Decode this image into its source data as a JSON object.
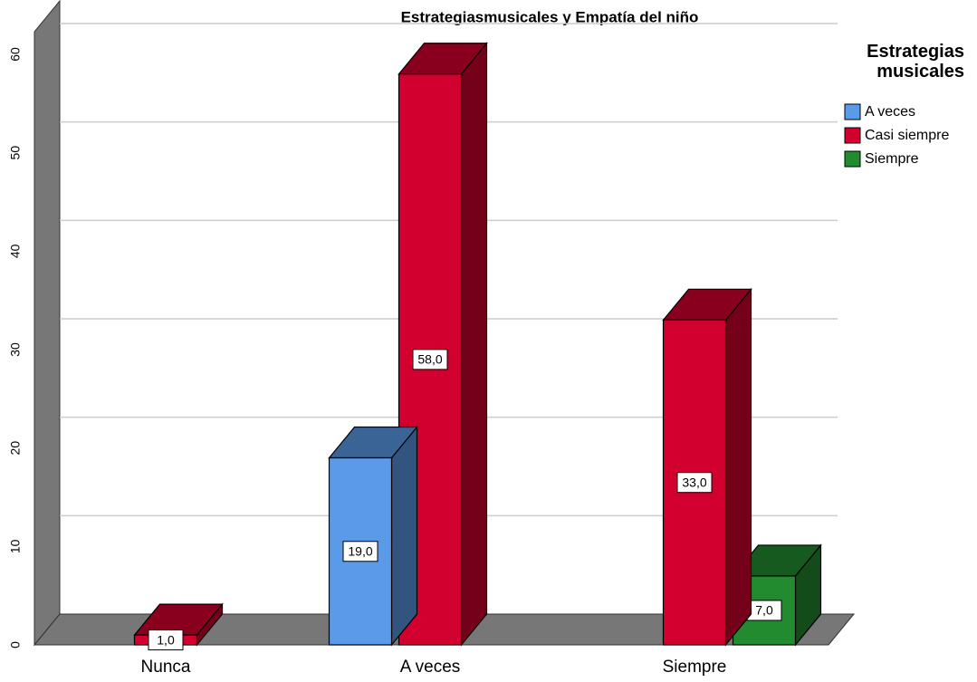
{
  "chart_data": {
    "type": "bar3d",
    "title": "Estrategiasmusicales  y Empatía del niño",
    "legend_title": "Estrategias musicales",
    "categories": [
      "Nunca",
      "A veces",
      "Siempre"
    ],
    "series": [
      {
        "name": "A veces",
        "color": "#5a9ae6",
        "values": [
          null,
          19,
          null
        ],
        "value_labels": [
          null,
          "19,0",
          null
        ]
      },
      {
        "name": "Casi siempre",
        "color": "#d2002e",
        "values": [
          1,
          58,
          33
        ],
        "value_labels": [
          "1,0",
          "58,0",
          "33,0"
        ]
      },
      {
        "name": "Siempre",
        "color": "#228b2f",
        "values": [
          null,
          null,
          7
        ],
        "value_labels": [
          null,
          null,
          "7,0"
        ]
      }
    ],
    "ylim": [
      0,
      60
    ],
    "yticks": [
      0,
      10,
      20,
      30,
      40,
      50,
      60
    ],
    "grid": true,
    "legend": "right"
  }
}
